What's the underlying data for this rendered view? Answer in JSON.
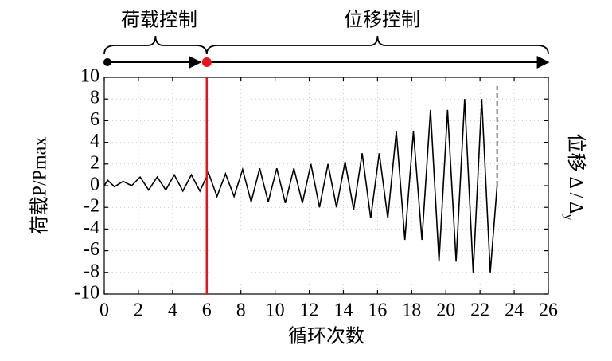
{
  "chart_data": {
    "type": "line",
    "x_label": "循环次数",
    "y_label": "荷载P/Pmax",
    "y2_label": "位移 Δ / Δ",
    "y2_label_sub": "y",
    "annotations": [
      "荷载控制",
      "位移控制"
    ],
    "phase_boundary": 6,
    "boundary_color": "#e8141c",
    "xlim": [
      0,
      26
    ],
    "xticks": [
      0,
      2,
      4,
      6,
      8,
      10,
      12,
      14,
      16,
      18,
      20,
      22,
      24,
      26
    ],
    "ylim": [
      -10,
      10
    ],
    "yticks": [
      -10,
      -8,
      -6,
      -4,
      -2,
      0,
      2,
      4,
      6,
      8,
      10
    ],
    "grid": true,
    "series": [
      {
        "color": "#000000",
        "style": "solid",
        "x": [
          0,
          0.2,
          0.6,
          1.1,
          1.6,
          2.1,
          2.6,
          3.1,
          3.6,
          4.1,
          4.6,
          5.1,
          5.6,
          6.1,
          6.6,
          7.1,
          7.6,
          8.1,
          8.6,
          9.1,
          9.6,
          10.1,
          10.6,
          11.1,
          11.6,
          12.1,
          12.6,
          13.1,
          13.6,
          14.1,
          14.6,
          15.1,
          15.6,
          16.1,
          16.6,
          17.1,
          17.6,
          18.1,
          18.6,
          19.1,
          19.6,
          20.1,
          20.6,
          21.1,
          21.6,
          22.1,
          22.6,
          23.0
        ],
        "values": [
          0,
          0.5,
          -0.1,
          0.4,
          0,
          0.8,
          -0.4,
          0.8,
          -0.4,
          1.0,
          -0.5,
          1.0,
          -0.5,
          1.2,
          -1,
          1.1,
          -1,
          1.5,
          -1.5,
          1.6,
          -1.5,
          1.6,
          -1.6,
          1.6,
          -1.6,
          2,
          -2,
          2,
          -2,
          2.2,
          -2.2,
          3,
          -3,
          3,
          -3,
          5,
          -5,
          5,
          -5,
          7,
          -7,
          7,
          -7,
          8,
          -8,
          8,
          -8,
          0
        ]
      },
      {
        "color": "#000000",
        "style": "dashed",
        "x": [
          23.0,
          23.0
        ],
        "values": [
          0,
          9.2
        ]
      }
    ]
  }
}
